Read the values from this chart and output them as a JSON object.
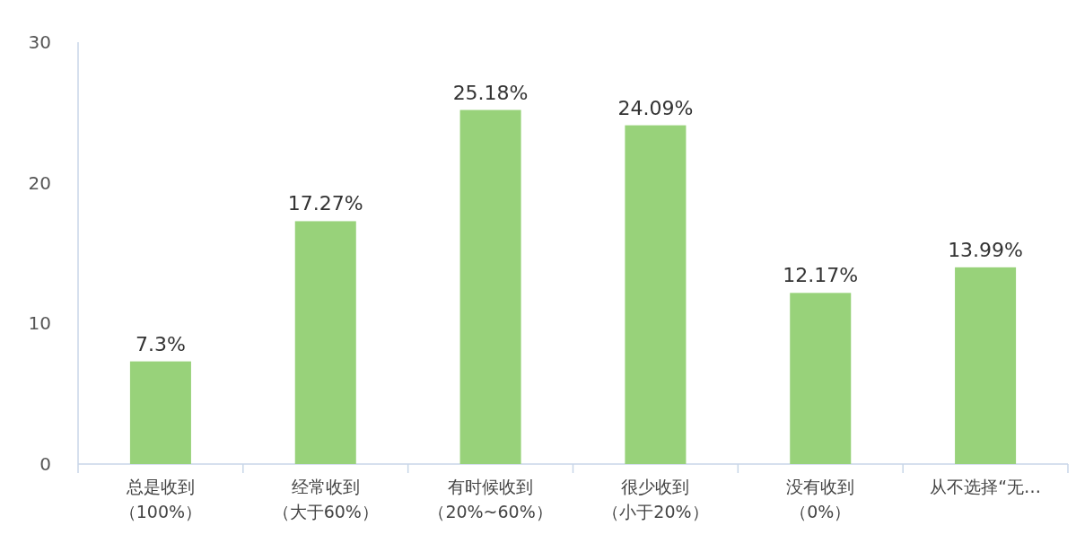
{
  "chart_data": {
    "type": "bar",
    "categories": [
      "总是收到（100%）",
      "经常收到（大于60%）",
      "有时候收到（20%~60%）",
      "很少收到（小于20%）",
      "没有收到（0%）",
      "从不选择“无…"
    ],
    "series": [
      {
        "color": "#98d27a",
        "values": [
          7.3,
          17.27,
          25.18,
          24.09,
          12.17,
          13.99
        ],
        "value_labels": [
          "7.3%",
          "17.27%",
          "25.18%",
          "24.09%",
          "12.17%",
          "13.99%"
        ]
      }
    ],
    "ylim": [
      0,
      30
    ],
    "yticks": [
      0,
      10,
      20,
      30
    ],
    "grid": false
  }
}
